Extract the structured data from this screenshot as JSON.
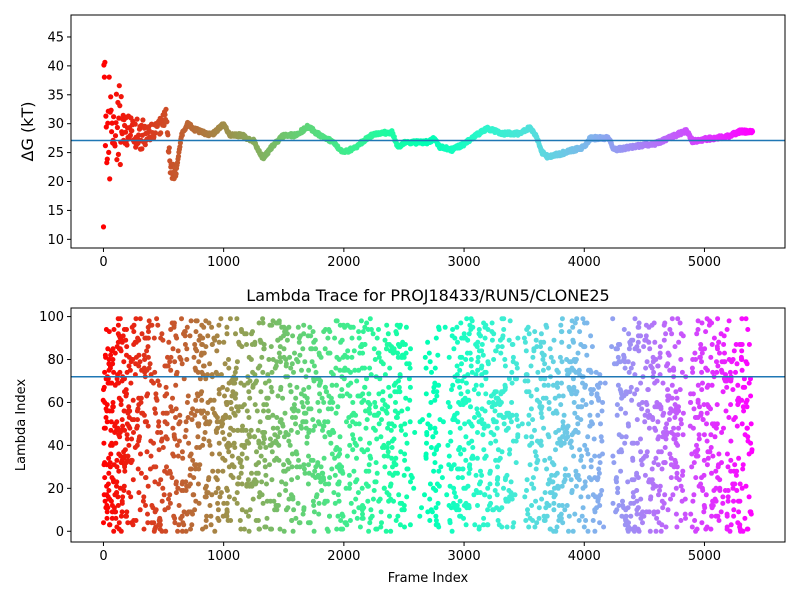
{
  "chart_data": [
    {
      "type": "scatter",
      "title": "",
      "xlabel": "",
      "ylabel": "ΔG (kT)",
      "xlim": [
        -270,
        5670
      ],
      "ylim": [
        8.5,
        48.8
      ],
      "xticks": [
        0,
        1000,
        2000,
        3000,
        4000,
        5000
      ],
      "yticks": [
        10,
        15,
        20,
        25,
        30,
        35,
        40,
        45
      ],
      "hline": 27.1,
      "hline_color": "#1f77b4",
      "colormap": "rainbow (color encodes frame index, red at 0 → violet at end)",
      "n_frames": 5400,
      "trace_keypoints": [
        [
          0,
          28
        ],
        [
          40,
          30
        ],
        [
          80,
          29
        ],
        [
          150,
          30
        ],
        [
          250,
          28
        ],
        [
          350,
          28
        ],
        [
          450,
          29
        ],
        [
          520,
          31
        ],
        [
          560,
          22
        ],
        [
          600,
          21
        ],
        [
          650,
          28
        ],
        [
          700,
          30
        ],
        [
          760,
          29
        ],
        [
          900,
          28
        ],
        [
          1000,
          30
        ],
        [
          1050,
          28
        ],
        [
          1150,
          28
        ],
        [
          1250,
          27
        ],
        [
          1300,
          25
        ],
        [
          1330,
          24
        ],
        [
          1400,
          26
        ],
        [
          1500,
          28
        ],
        [
          1600,
          28
        ],
        [
          1700,
          29.5
        ],
        [
          1800,
          28
        ],
        [
          1900,
          27
        ],
        [
          1950,
          26
        ],
        [
          2000,
          25
        ],
        [
          2100,
          26
        ],
        [
          2250,
          28.3
        ],
        [
          2400,
          28.5
        ],
        [
          2450,
          26
        ],
        [
          2500,
          26.7
        ],
        [
          2700,
          26.8
        ],
        [
          2750,
          27.5
        ],
        [
          2800,
          26
        ],
        [
          2900,
          25.5
        ],
        [
          3000,
          26.5
        ],
        [
          3100,
          28
        ],
        [
          3200,
          29.2
        ],
        [
          3300,
          28.3
        ],
        [
          3450,
          28.3
        ],
        [
          3550,
          29.3
        ],
        [
          3600,
          28
        ],
        [
          3650,
          25
        ],
        [
          3700,
          24.2
        ],
        [
          3800,
          24.8
        ],
        [
          4000,
          26
        ],
        [
          4050,
          27.5
        ],
        [
          4200,
          27.5
        ],
        [
          4250,
          25.5
        ],
        [
          4400,
          26
        ],
        [
          4600,
          26.6
        ],
        [
          4700,
          27.5
        ],
        [
          4850,
          28.8
        ],
        [
          4900,
          27
        ],
        [
          5000,
          27.3
        ],
        [
          5200,
          27.8
        ],
        [
          5300,
          28.7
        ],
        [
          5400,
          28.6
        ]
      ],
      "early_scatter_range": [
        10,
        47.5
      ]
    },
    {
      "type": "scatter",
      "title": "Lambda Trace for PROJ18433/RUN5/CLONE25",
      "xlabel": "Frame Index",
      "ylabel": "Lambda Index",
      "xlim": [
        -270,
        5670
      ],
      "ylim": [
        -5,
        104
      ],
      "xticks": [
        0,
        1000,
        2000,
        3000,
        4000,
        5000
      ],
      "yticks": [
        0,
        20,
        40,
        60,
        80,
        100
      ],
      "hline": 72,
      "hline_color": "#1f77b4",
      "colormap": "rainbow (color encodes frame index, red at 0 → violet at end)",
      "n_frames": 5400,
      "lambda_range": [
        0,
        99
      ],
      "sparse_bands": [
        [
          2560,
          2680
        ],
        [
          2800,
          2870
        ],
        [
          3450,
          3500
        ],
        [
          4150,
          4260
        ],
        [
          4820,
          4880
        ]
      ]
    }
  ]
}
